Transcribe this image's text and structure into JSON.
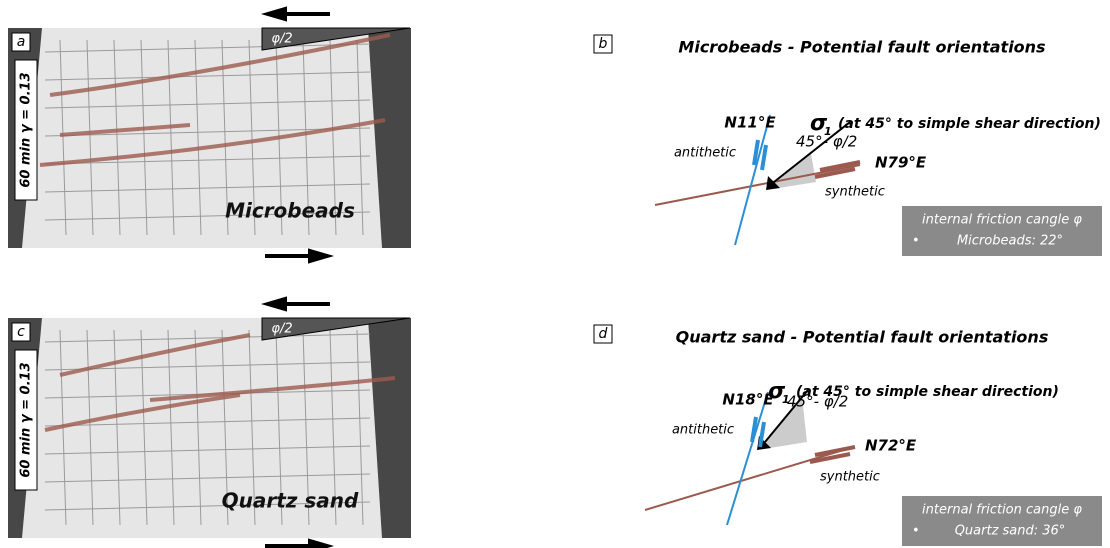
{
  "rows": [
    {
      "photo": {
        "label": "a",
        "duration": "60 min γ = 0.13",
        "angle": "φ/2",
        "material": "Microbeads"
      },
      "diagram": {
        "label": "b",
        "title": "Microbeads - Potential fault orientations",
        "antithetic_strike": "N11°E",
        "sigma": "σ",
        "sigma_index": "1",
        "sigma_note": "(at 45° to simple shear direction)",
        "antithetic": "antithetic",
        "angle": "45°- φ/2",
        "synthetic_strike": "N79°E",
        "synthetic": "synthetic",
        "friction_title": "internal friction cangle φ",
        "bullet": "•",
        "friction_value": "Microbeads: 22°"
      }
    },
    {
      "photo": {
        "label": "c",
        "duration": "60 min γ = 0.13",
        "angle": "φ/2",
        "material": "Quartz sand"
      },
      "diagram": {
        "label": "d",
        "title": "Quartz sand - Potential fault orientations",
        "antithetic_strike": "N18°E",
        "sigma": "σ",
        "sigma_index": "1",
        "sigma_note": "(at 45° to simple shear direction)",
        "antithetic": "antithetic",
        "angle": "45°- φ/2",
        "synthetic_strike": "N72°E",
        "synthetic": "synthetic",
        "friction_title": "internal friction cangle φ",
        "bullet": "•",
        "friction_value": "Quartz sand: 36°"
      }
    }
  ]
}
